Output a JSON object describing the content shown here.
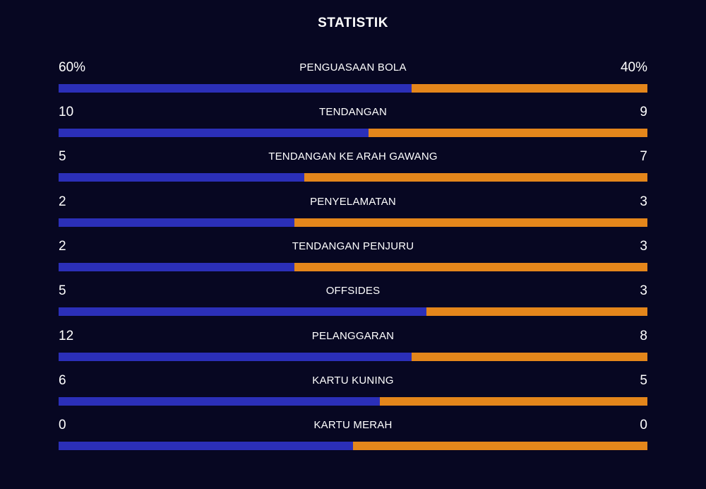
{
  "title": "STATISTIK",
  "colors": {
    "background": "#070722",
    "home_bar": "#2b2fb8",
    "away_bar": "#e4861b",
    "text": "#ffffff"
  },
  "stats": [
    {
      "label": "PENGUASAAN BOLA",
      "home": "60%",
      "away": "40%",
      "home_share": 0.6
    },
    {
      "label": "TENDANGAN",
      "home": "10",
      "away": "9",
      "home_share": 0.526
    },
    {
      "label": "TENDANGAN KE ARAH GAWANG",
      "home": "5",
      "away": "7",
      "home_share": 0.417
    },
    {
      "label": "PENYELAMATAN",
      "home": "2",
      "away": "3",
      "home_share": 0.4
    },
    {
      "label": "TENDANGAN PENJURU",
      "home": "2",
      "away": "3",
      "home_share": 0.4
    },
    {
      "label": "OFFSIDES",
      "home": "5",
      "away": "3",
      "home_share": 0.625
    },
    {
      "label": "PELANGGARAN",
      "home": "12",
      "away": "8",
      "home_share": 0.6
    },
    {
      "label": "KARTU KUNING",
      "home": "6",
      "away": "5",
      "home_share": 0.545
    },
    {
      "label": "KARTU MERAH",
      "home": "0",
      "away": "0",
      "home_share": 0.5
    }
  ]
}
